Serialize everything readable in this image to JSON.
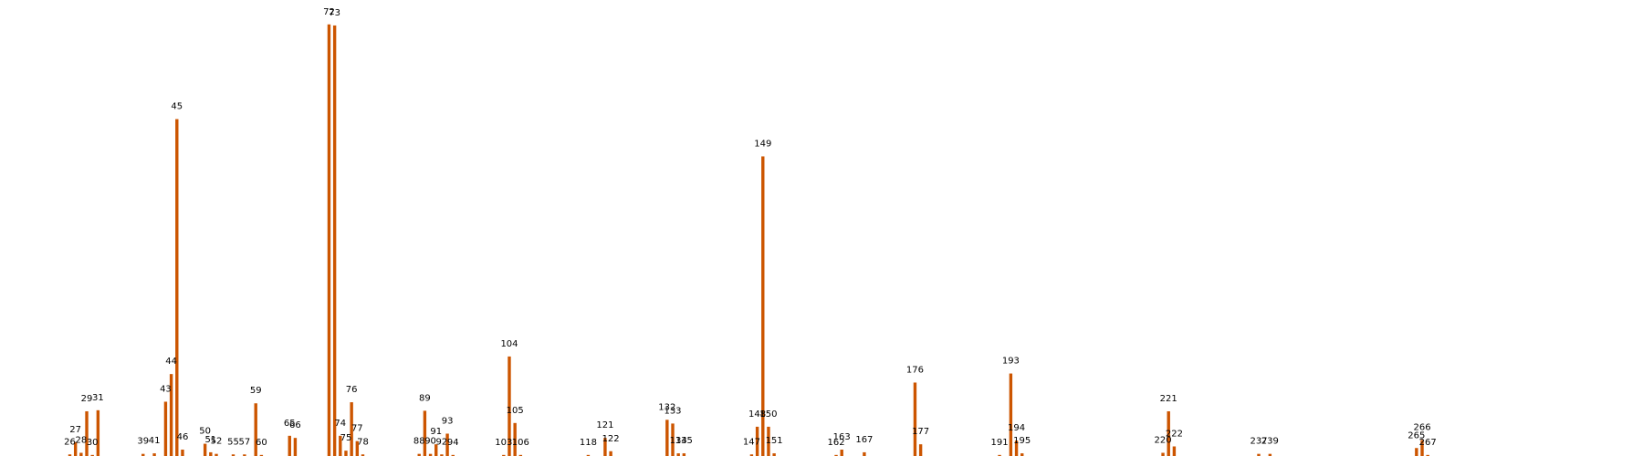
{
  "chart_data": {
    "type": "bar",
    "title": "",
    "xlabel": "",
    "ylabel": "",
    "grid": false,
    "legend": "none",
    "bar_color": "#cc5500",
    "x": [
      26,
      27,
      28,
      29,
      30,
      31,
      39,
      41,
      43,
      44,
      45,
      46,
      50,
      51,
      52,
      55,
      57,
      59,
      60,
      65,
      66,
      72,
      73,
      74,
      75,
      76,
      77,
      78,
      88,
      89,
      90,
      91,
      92,
      93,
      94,
      103,
      104,
      105,
      106,
      118,
      121,
      122,
      132,
      133,
      134,
      135,
      147,
      148,
      149,
      150,
      151,
      162,
      163,
      167,
      176,
      177,
      191,
      193,
      194,
      195,
      220,
      221,
      222,
      237,
      239,
      265,
      266,
      267
    ],
    "labels": [
      "26",
      "27",
      "28",
      "29",
      "30",
      "31",
      "39",
      "41",
      "43",
      "44",
      "45",
      "46",
      "50",
      "51",
      "52",
      "55",
      "57",
      "59",
      "60",
      "65",
      "66",
      "72",
      "73",
      "74",
      "75",
      "76",
      "77",
      "78",
      "88",
      "89",
      "90",
      "91",
      "92",
      "93",
      "94",
      "103",
      "104",
      "105",
      "106",
      "118",
      "121",
      "122",
      "132",
      "133",
      "134",
      "135",
      "147",
      "148",
      "149",
      "150",
      "151",
      "162",
      "163",
      "167",
      "176",
      "177",
      "191",
      "193",
      "194",
      "195",
      "220",
      "221",
      "222",
      "237",
      "239",
      "265",
      "266",
      "267"
    ],
    "values": [
      0.3,
      2.6,
      0.6,
      8.4,
      0.2,
      8.6,
      0.4,
      0.5,
      10.2,
      15.4,
      63.3,
      1.2,
      2.3,
      0.7,
      0.4,
      0.3,
      0.3,
      9.9,
      0.2,
      3.8,
      3.4,
      81.1,
      80.9,
      3.8,
      1.0,
      10.1,
      2.8,
      0.3,
      0.4,
      8.5,
      0.4,
      2.2,
      0.3,
      4.2,
      0.2,
      0.2,
      18.7,
      6.2,
      0.2,
      0.2,
      3.4,
      0.9,
      6.8,
      6.1,
      0.5,
      0.5,
      0.3,
      5.5,
      56.3,
      5.5,
      0.5,
      0.2,
      1.2,
      0.7,
      13.8,
      2.2,
      0.2,
      15.5,
      2.9,
      0.5,
      0.6,
      8.4,
      1.8,
      0.4,
      0.4,
      1.5,
      3.0,
      0.2
    ],
    "xlim": [
      0,
      270
    ],
    "ylim": [
      0,
      85
    ]
  }
}
